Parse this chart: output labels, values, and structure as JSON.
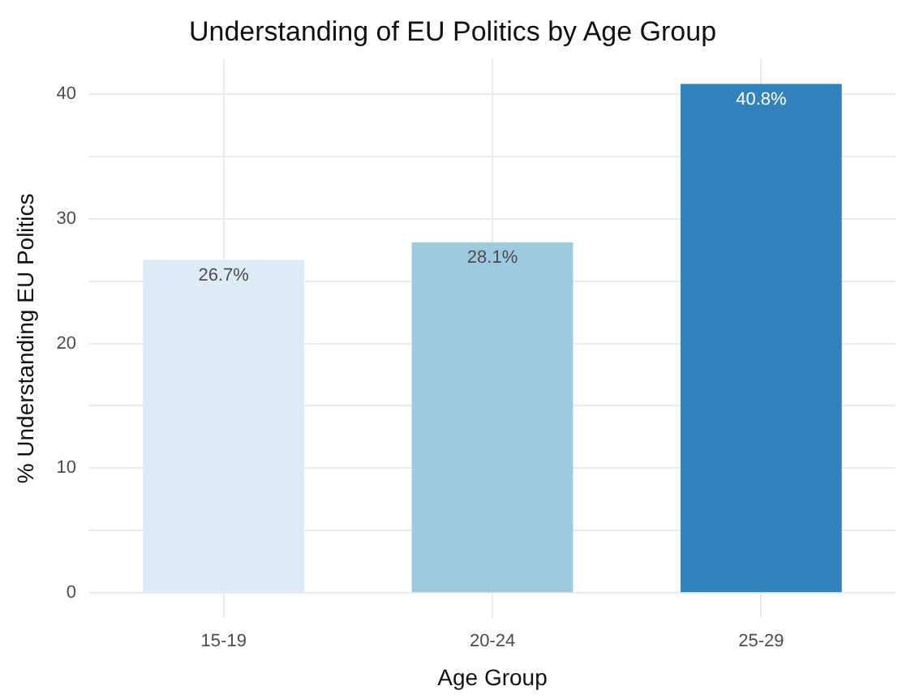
{
  "chart_data": {
    "type": "bar",
    "title": "Understanding of EU Politics by Age Group",
    "xlabel": "Age Group",
    "ylabel": "% Understanding EU Politics",
    "categories": [
      "15-19",
      "20-24",
      "25-29"
    ],
    "values": [
      26.7,
      28.1,
      40.8
    ],
    "colors": [
      "#deebf7",
      "#9ecae1",
      "#3182bd"
    ],
    "value_labels": [
      "26.7%",
      "28.1%",
      "40.8%"
    ],
    "ylim": [
      -2,
      42.8
    ],
    "yticks": [
      0,
      {
        "value": 5,
        "label": null
      },
      10,
      {
        "value": 15,
        "label": null
      },
      20,
      {
        "value": 25,
        "label": null
      },
      30,
      {
        "value": 35,
        "label": null
      },
      40
    ],
    "grid": true
  }
}
